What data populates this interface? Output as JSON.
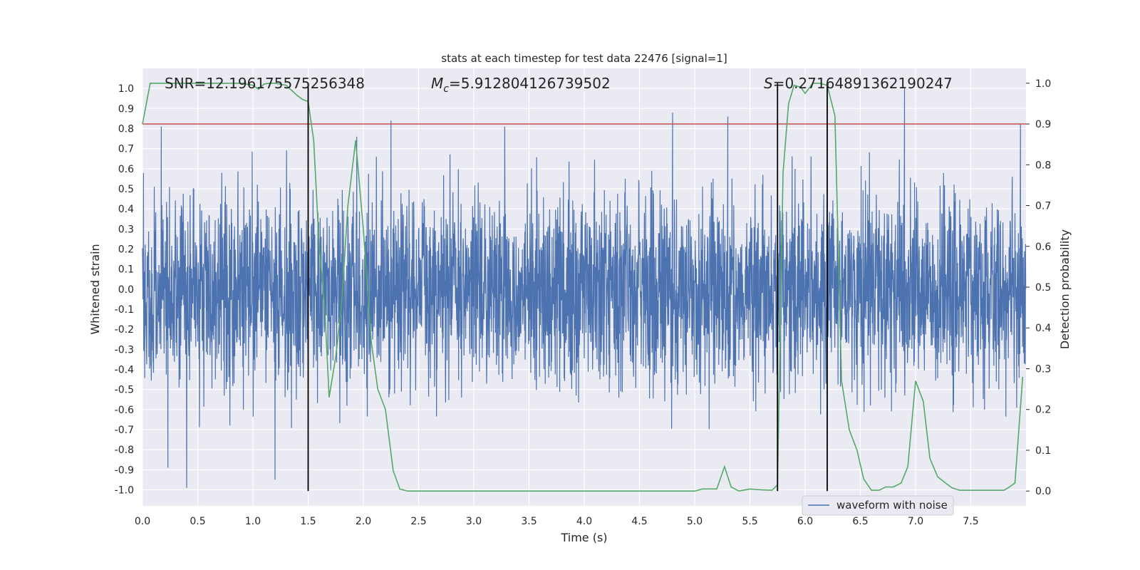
{
  "chart_data": {
    "type": "line",
    "title": "stats at each timestep for test data 22476 [signal=1]",
    "xlabel": "Time (s)",
    "ylabel": "Whitened strain",
    "y2label": "Detection probability",
    "xlim": [
      0,
      8
    ],
    "ylim": [
      -1.08,
      1.1
    ],
    "y2lim": [
      -0.0363,
      1.0363
    ],
    "xticks": [
      "0.0",
      "0.5",
      "1.0",
      "1.5",
      "2.0",
      "2.5",
      "3.0",
      "3.5",
      "4.0",
      "4.5",
      "5.0",
      "5.5",
      "6.0",
      "6.5",
      "7.0",
      "7.5"
    ],
    "yticks": [
      "1.0",
      "0.9",
      "0.8",
      "0.7",
      "0.6",
      "0.5",
      "0.4",
      "0.3",
      "0.2",
      "0.1",
      "0.0",
      "-0.1",
      "-0.2",
      "-0.3",
      "-0.4",
      "-0.5",
      "-0.6",
      "-0.7",
      "-0.8",
      "-0.9",
      "-1.0"
    ],
    "y2ticks": [
      "1.0",
      "0.9",
      "0.8",
      "0.7",
      "0.6",
      "0.5",
      "0.4",
      "0.3",
      "0.2",
      "0.1",
      "0.0"
    ],
    "annotations": {
      "snr": "SNR=12.196175575256348",
      "mc_symbol": "M",
      "mc_sub": "c",
      "mc_value": "=5.912804126739502",
      "s_symbol": "S",
      "s_value": "=0.27164891362190247"
    },
    "legend": {
      "label": "waveform with noise",
      "position": "lower-right"
    },
    "threshold": {
      "y2": 0.9,
      "color": "#c44e52"
    },
    "vlines": [
      1.5,
      5.75,
      6.2
    ],
    "colors": {
      "waveform": "#4c72b0",
      "probability": "#55a868",
      "vline": "#000000"
    },
    "waveform": {
      "description_range": [
        -0.99,
        1.0
      ],
      "notable_peaks": [
        {
          "x": 0.17,
          "y": 0.81
        },
        {
          "x": 0.4,
          "y": -0.99
        },
        {
          "x": 0.23,
          "y": -0.89
        },
        {
          "x": 1.2,
          "y": -0.95
        },
        {
          "x": 2.25,
          "y": 0.84
        },
        {
          "x": 3.28,
          "y": 0.81
        },
        {
          "x": 4.8,
          "y": 0.88
        },
        {
          "x": 5.3,
          "y": 0.86
        },
        {
          "x": 6.9,
          "y": 1.0
        },
        {
          "x": 7.95,
          "y": 0.82
        },
        {
          "x": 5.75,
          "y": -0.98
        },
        {
          "x": 1.94,
          "y": 0.76
        }
      ]
    },
    "detection_probability": {
      "x": [
        0.0,
        0.07,
        0.13,
        0.2,
        0.3,
        0.4,
        0.5,
        0.6,
        0.7,
        0.8,
        0.9,
        1.0,
        1.05,
        1.1,
        1.15,
        1.2,
        1.3,
        1.4,
        1.45,
        1.5,
        1.55,
        1.6,
        1.65,
        1.69,
        1.75,
        1.8,
        1.86,
        1.93,
        2.0,
        2.07,
        2.13,
        2.2,
        2.27,
        2.33,
        2.4,
        2.5,
        2.7,
        3.0,
        3.3,
        3.6,
        4.0,
        4.5,
        5.0,
        5.07,
        5.13,
        5.2,
        5.27,
        5.33,
        5.4,
        5.5,
        5.6,
        5.7,
        5.75,
        5.8,
        5.85,
        5.9,
        5.96,
        6.0,
        6.07,
        6.13,
        6.2,
        6.27,
        6.33,
        6.4,
        6.47,
        6.53,
        6.6,
        6.67,
        6.73,
        6.8,
        6.87,
        6.93,
        7.0,
        7.07,
        7.13,
        7.2,
        7.27,
        7.33,
        7.4,
        7.5,
        7.65,
        7.8,
        7.85,
        7.9,
        7.97
      ],
      "y": [
        0.9,
        1.0,
        1.0,
        1.0,
        1.0,
        1.0,
        1.0,
        1.0,
        1.0,
        1.0,
        1.0,
        0.995,
        0.985,
        0.998,
        1.0,
        1.0,
        0.995,
        0.97,
        0.96,
        0.955,
        0.86,
        0.6,
        0.45,
        0.23,
        0.33,
        0.45,
        0.7,
        0.86,
        0.64,
        0.37,
        0.25,
        0.2,
        0.05,
        0.005,
        0.0,
        0.0,
        0.0,
        0.0,
        0.0,
        0.0,
        0.0,
        0.0,
        0.0,
        0.005,
        0.005,
        0.005,
        0.06,
        0.01,
        0.0,
        0.005,
        0.003,
        0.002,
        0.015,
        0.78,
        0.95,
        0.995,
        0.99,
        0.975,
        1.0,
        1.0,
        0.995,
        0.92,
        0.27,
        0.15,
        0.1,
        0.03,
        0.002,
        0.002,
        0.01,
        0.01,
        0.02,
        0.06,
        0.27,
        0.22,
        0.08,
        0.035,
        0.02,
        0.008,
        0.002,
        0.002,
        0.002,
        0.002,
        0.01,
        0.02,
        0.28
      ]
    }
  }
}
